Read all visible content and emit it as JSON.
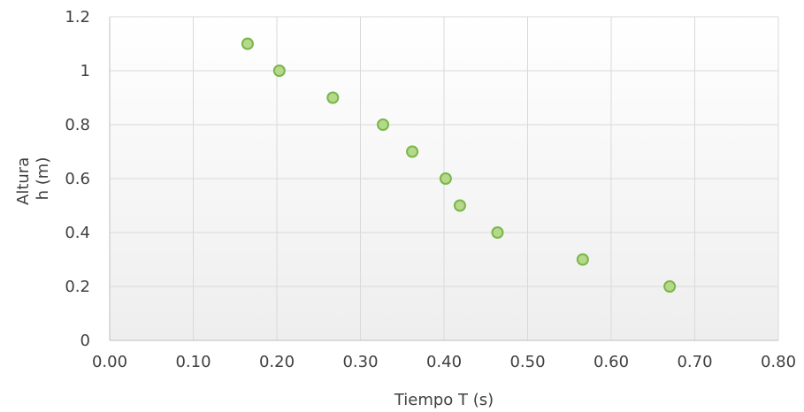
{
  "chart_data": {
    "type": "scatter",
    "title": "",
    "xlabel": "Tiempo T (s)",
    "ylabel_lines": [
      "Altura",
      "h (m)"
    ],
    "xlim": [
      0,
      0.8
    ],
    "ylim": [
      0,
      1.2
    ],
    "x_ticks": [
      "0.00",
      "0.10",
      "0.20",
      "0.30",
      "0.40",
      "0.50",
      "0.60",
      "0.70",
      "0.80"
    ],
    "y_ticks": [
      "0",
      "0.2",
      "0.4",
      "0.6",
      "0.8",
      "1",
      "1.2"
    ],
    "grid": true,
    "legend": "none",
    "marker_fill": "#b5d98a",
    "marker_stroke": "#7ab648",
    "points": [
      {
        "x": 0.165,
        "y": 1.1
      },
      {
        "x": 0.203,
        "y": 1.0
      },
      {
        "x": 0.267,
        "y": 0.9
      },
      {
        "x": 0.327,
        "y": 0.8
      },
      {
        "x": 0.362,
        "y": 0.7
      },
      {
        "x": 0.402,
        "y": 0.6
      },
      {
        "x": 0.419,
        "y": 0.5
      },
      {
        "x": 0.464,
        "y": 0.4
      },
      {
        "x": 0.566,
        "y": 0.3
      },
      {
        "x": 0.67,
        "y": 0.2
      }
    ]
  }
}
